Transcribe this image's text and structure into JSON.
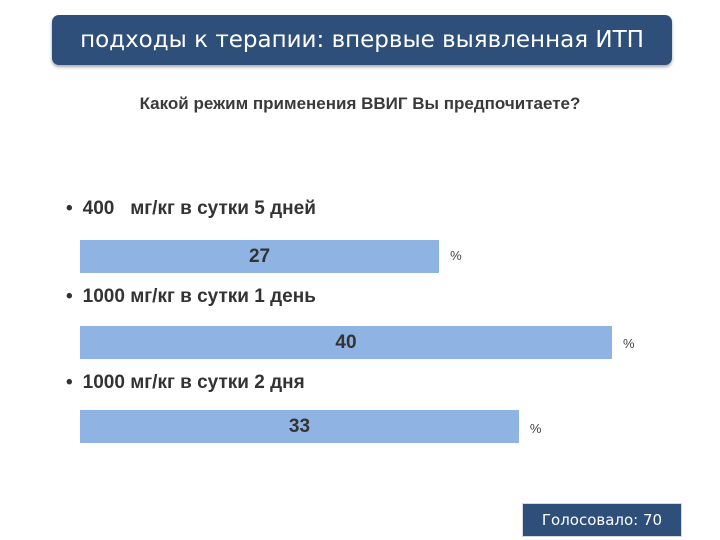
{
  "slide_title": "подходы к терапии: впервые выявленная ИТП",
  "question": "Какой режим применения ВВИГ Вы предпочитаете?",
  "bullet_glyph": "•",
  "percent_sign": "%",
  "votes_label": "Голосовало: 70",
  "colors": {
    "title_bar": "#2e4f7a",
    "bar_fill": "#8fb3e2",
    "votes_box": "#2e4f7a"
  },
  "chart_data": {
    "type": "bar",
    "orientation": "horizontal",
    "unit": "%",
    "categories": [
      "400   мг/кг в сутки 5 дней",
      "1000 мг/кг в сутки 1 день",
      "1000 мг/кг в сутки 2 дня"
    ],
    "values": [
      27,
      40,
      33
    ]
  }
}
